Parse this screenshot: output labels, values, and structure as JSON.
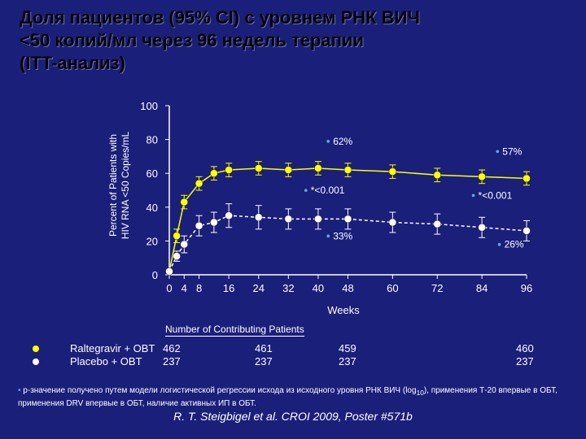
{
  "title": {
    "line1": "Доля пациентов (95% CI)  с уровнем РНК ВИЧ",
    "line2": "<50 копий/мл через 96 недель терапии",
    "line3": "(ITT-анализ)"
  },
  "chart_data": {
    "type": "line",
    "xlabel": "Weeks",
    "ylabel_line1": "Percent of Patients with",
    "ylabel_line2": "HIV RNA <50 Copies/mL",
    "ylim": [
      0,
      100
    ],
    "yticks": [
      "0",
      "20",
      "40",
      "60",
      "80",
      "100"
    ],
    "xticks": [
      "0",
      "4",
      "8",
      "16",
      "24",
      "32",
      "40",
      "48",
      "60",
      "72",
      "84",
      "96"
    ],
    "x": [
      0,
      2,
      4,
      8,
      12,
      16,
      24,
      32,
      40,
      48,
      60,
      72,
      84,
      96
    ],
    "series": [
      {
        "name": "Raltegravir + OBT",
        "color": "#ffff00",
        "style": "solid",
        "values": [
          2,
          23,
          43,
          54,
          60,
          62,
          63,
          62,
          63,
          62,
          61,
          59,
          58,
          57
        ],
        "err": [
          0,
          4,
          4,
          4,
          4,
          4,
          4,
          4,
          4,
          4,
          4,
          4,
          4,
          4
        ]
      },
      {
        "name": "Placebo + OBT",
        "color": "#ffffff",
        "style": "dashed",
        "values": [
          2,
          11,
          18,
          29,
          31,
          35,
          34,
          33,
          33,
          33,
          31,
          30,
          28,
          26
        ],
        "err": [
          0,
          3,
          5,
          6,
          6,
          7,
          7,
          6,
          6,
          6,
          6,
          6,
          6,
          6
        ]
      }
    ],
    "annotations": {
      "w48_top": "62%",
      "w48_p": "*<0.001",
      "w48_bottom": "33%",
      "w96_top": "57%",
      "w96_p": "*<0.001",
      "w96_bottom": "26%"
    },
    "annotation_color": "#5bb0e0"
  },
  "contributing": {
    "title": "Number of Contributing Patients",
    "rows": [
      {
        "name": "Raltegravir + OBT",
        "counts": [
          "462",
          "461",
          "459",
          "460"
        ]
      },
      {
        "name": "Placebo + OBT",
        "counts": [
          "237",
          "237",
          "237",
          "237"
        ]
      }
    ]
  },
  "footnote": {
    "bullet": "•",
    "text_pre": "p-значение получено путем модели логистической регрессии исхода из исходного уровня РНК ВИЧ (log",
    "text_sub": "10",
    "text_post": "), применения  Т-20 впервые  в ОБТ,  применения DRV впервые в ОБТ,  наличие активных ИП в ОБТ."
  },
  "citation": "R. T. Steigbigel et al. CROI 2009, Poster #571b"
}
